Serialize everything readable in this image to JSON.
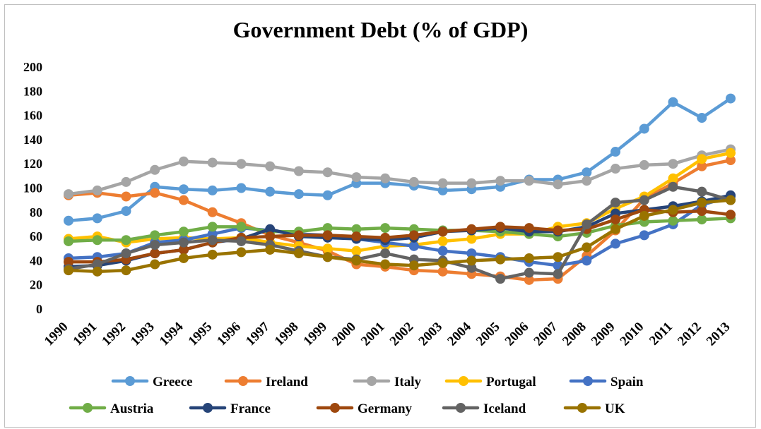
{
  "chart_data": {
    "type": "line",
    "title": "Government Debt (% of GDP)",
    "xlabel": "",
    "ylabel": "",
    "ylim": [
      0,
      200
    ],
    "yticks": [
      0,
      20,
      40,
      60,
      80,
      100,
      120,
      140,
      160,
      180,
      200
    ],
    "x": [
      "1990",
      "1991",
      "1992",
      "1993",
      "1994",
      "1995",
      "1996",
      "1997",
      "1998",
      "1999",
      "2000",
      "2001",
      "2002",
      "2003",
      "2004",
      "2005",
      "2006",
      "2007",
      "2008",
      "2009",
      "2010",
      "2011",
      "2012",
      "2013"
    ],
    "grid": false,
    "legend_position": "bottom",
    "series": [
      {
        "name": "Greece",
        "color": "#5b9bd5",
        "values": [
          73,
          75,
          81,
          101,
          99,
          98,
          100,
          97,
          95,
          94,
          104,
          104,
          102,
          98,
          99,
          101,
          107,
          107,
          113,
          130,
          149,
          171,
          158,
          174
        ]
      },
      {
        "name": "Ireland",
        "color": "#ed7d31",
        "values": [
          94,
          96,
          93,
          96,
          90,
          80,
          71,
          61,
          55,
          48,
          37,
          35,
          32,
          31,
          29,
          27,
          24,
          25,
          44,
          65,
          91,
          104,
          118,
          123
        ]
      },
      {
        "name": "Italy",
        "color": "#a5a5a5",
        "values": [
          95,
          98,
          105,
          115,
          122,
          121,
          120,
          118,
          114,
          113,
          109,
          108,
          105,
          104,
          104,
          106,
          106,
          103,
          106,
          116,
          119,
          120,
          127,
          132
        ]
      },
      {
        "name": "Portugal",
        "color": "#ffc000",
        "values": [
          58,
          60,
          55,
          58,
          59,
          58,
          59,
          55,
          52,
          50,
          48,
          52,
          53,
          56,
          58,
          62,
          62,
          68,
          71,
          83,
          93,
          108,
          124,
          129
        ]
      },
      {
        "name": "Spain",
        "color": "#4472c4",
        "values": [
          42,
          43,
          46,
          55,
          57,
          62,
          67,
          65,
          62,
          61,
          58,
          55,
          52,
          48,
          46,
          43,
          39,
          36,
          40,
          54,
          61,
          70,
          86,
          93
        ]
      },
      {
        "name": "Austria",
        "color": "#70ad47",
        "values": [
          56,
          57,
          57,
          61,
          64,
          68,
          68,
          64,
          64,
          67,
          66,
          67,
          66,
          65,
          65,
          64,
          62,
          60,
          63,
          69,
          72,
          73,
          74,
          75
        ]
      },
      {
        "name": "France",
        "color": "#264478",
        "values": [
          35,
          36,
          40,
          46,
          49,
          55,
          58,
          66,
          60,
          59,
          58,
          57,
          59,
          64,
          65,
          67,
          64,
          64,
          68,
          79,
          82,
          85,
          89,
          94
        ]
      },
      {
        "name": "Germany",
        "color": "#9e480e",
        "values": [
          39,
          39,
          41,
          46,
          49,
          55,
          59,
          60,
          61,
          61,
          60,
          59,
          61,
          64,
          66,
          68,
          67,
          65,
          66,
          74,
          82,
          80,
          81,
          78
        ]
      },
      {
        "name": "Iceland",
        "color": "#636363",
        "values": [
          33,
          37,
          46,
          53,
          55,
          57,
          56,
          53,
          48,
          43,
          41,
          46,
          41,
          40,
          34,
          25,
          30,
          29,
          70,
          88,
          90,
          101,
          97,
          90
        ]
      },
      {
        "name": "UK",
        "color": "#997300",
        "values": [
          32,
          31,
          32,
          37,
          42,
          45,
          47,
          49,
          46,
          43,
          40,
          37,
          36,
          38,
          40,
          41,
          42,
          43,
          51,
          66,
          77,
          82,
          88,
          90
        ]
      }
    ]
  }
}
